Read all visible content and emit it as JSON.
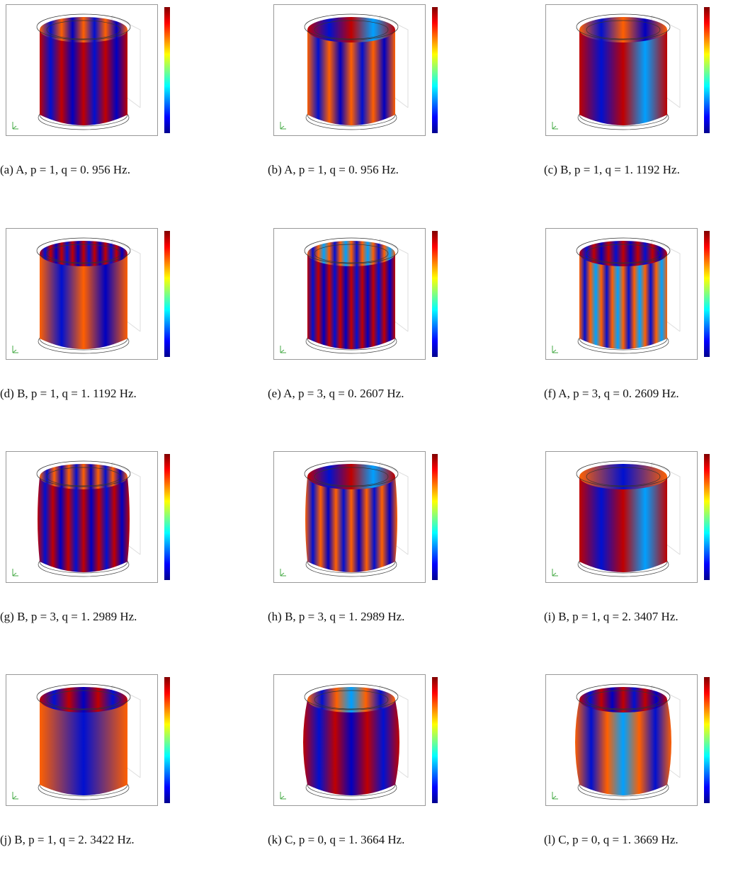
{
  "figures": [
    {
      "caption": "(a) A, p = 1, q = 0. 956 Hz."
    },
    {
      "caption": "(b) A, p = 1, q = 0. 956 Hz."
    },
    {
      "caption": "(c) B, p = 1, q = 1. 1192 Hz."
    },
    {
      "caption": "(d) B, p = 1, q = 1. 1192 Hz."
    },
    {
      "caption": "(e) A, p = 3, q = 0. 2607 Hz."
    },
    {
      "caption": "(f) A, p = 3, q = 0. 2609 Hz."
    },
    {
      "caption": "(g) B, p = 3, q = 1. 2989 Hz."
    },
    {
      "caption": "(h) B, p = 3, q = 1. 2989 Hz."
    },
    {
      "caption": "(i) B, p = 1, q = 2. 3407 Hz."
    },
    {
      "caption": "(j) B, p = 1, q = 2. 3422 Hz."
    },
    {
      "caption": "(k) C, p = 0, q = 1. 3664 Hz."
    },
    {
      "caption": "(l) C, p = 0, q = 1. 3669 Hz."
    }
  ]
}
